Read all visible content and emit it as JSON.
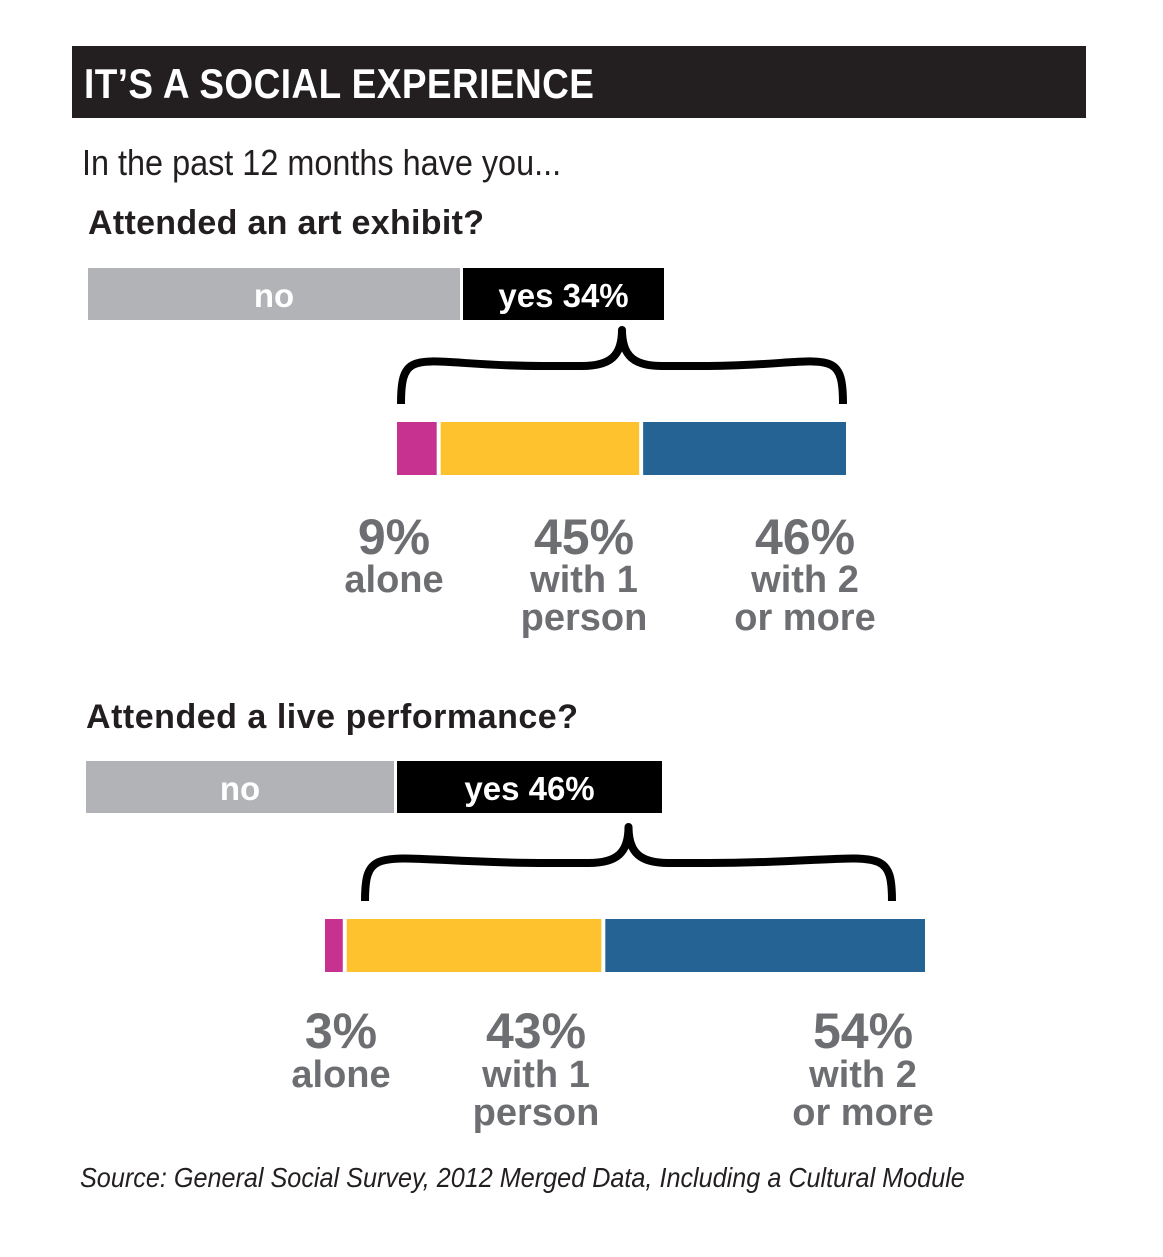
{
  "title": "IT’S A SOCIAL EXPERIENCE",
  "subtitle": "In the past 12 months have you...",
  "source": "Source: General Social Survey, 2012 Merged Data, Including a Cultural Module",
  "colors": {
    "no": "#b1b3b6",
    "yes": "#000000",
    "alone": "#c7318f",
    "with_1_person": "#fdc22d",
    "with_2_or_more": "#256395",
    "label_gray": "#6d6e71"
  },
  "chart_data": [
    {
      "type": "bar",
      "title": "Attended an art exhibit?",
      "top_bar": {
        "no_label": "no",
        "yes_label": "yes 34%",
        "yes_value": 34
      },
      "breakdown": {
        "categories": [
          "alone",
          "with 1 person",
          "with 2 or more"
        ],
        "values": [
          9,
          45,
          46
        ],
        "value_labels": [
          "9%",
          "45%",
          "46%"
        ],
        "desc_lines": [
          [
            "alone"
          ],
          [
            "with 1",
            "person"
          ],
          [
            "with 2",
            "or more"
          ]
        ]
      }
    },
    {
      "type": "bar",
      "title": "Attended a live performance?",
      "top_bar": {
        "no_label": "no",
        "yes_label": "yes 46%",
        "yes_value": 46
      },
      "breakdown": {
        "categories": [
          "alone",
          "with 1 person",
          "with 2 or more"
        ],
        "values": [
          3,
          43,
          54
        ],
        "value_labels": [
          "3%",
          "43%",
          "54%"
        ],
        "desc_lines": [
          [
            "alone"
          ],
          [
            "with 1",
            "person"
          ],
          [
            "with 2",
            "or more"
          ]
        ]
      }
    }
  ]
}
